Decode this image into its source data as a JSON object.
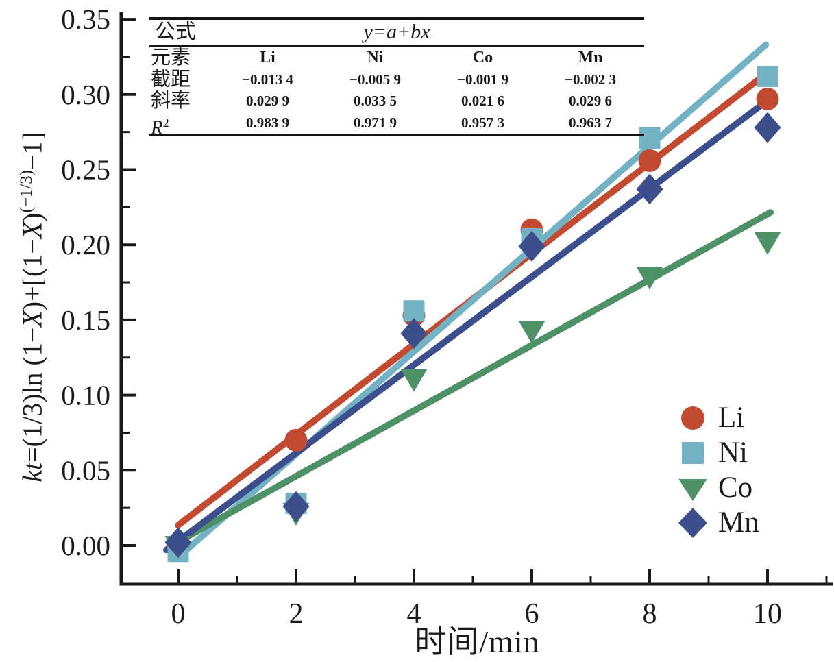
{
  "figure": {
    "background": "#ffffff",
    "text_color": "#1a1a1a",
    "axis_color": "#1a1a1a"
  },
  "chart_data": {
    "type": "scatter",
    "title": "",
    "xlabel": "时间/min",
    "ylabel": "kt=(1/3)ln (1−X)+[(1−X)^(−1/3)−1]",
    "ylabel_segments": [
      {
        "t": "kt",
        "i": true
      },
      {
        "t": "=(1/3)ln (1−",
        "i": false
      },
      {
        "t": "X",
        "i": true
      },
      {
        "t": ")+[(1−",
        "i": false
      },
      {
        "t": "X",
        "i": true
      },
      {
        "t": ")",
        "i": false
      },
      {
        "t": "(−1/3)",
        "sup": true
      },
      {
        "t": "−1]",
        "i": false
      }
    ],
    "xlim": [
      -1,
      11.2
    ],
    "ylim": [
      -0.026,
      0.353
    ],
    "grid": false,
    "legend_position": "lower-right",
    "x_ticks": [
      0,
      2,
      4,
      6,
      8,
      10
    ],
    "x_tick_labels": [
      "0",
      "2",
      "4",
      "6",
      "8",
      "10"
    ],
    "x_minor_ticks": [
      1,
      3,
      5,
      7,
      9,
      11
    ],
    "y_ticks": [
      0.0,
      0.05,
      0.1,
      0.15,
      0.2,
      0.25,
      0.3,
      0.35
    ],
    "y_tick_labels": [
      "0.00",
      "0.05",
      "0.10",
      "0.15",
      "0.20",
      "0.25",
      "0.30",
      "0.35"
    ],
    "y_minor_ticks": [
      0.025,
      0.075,
      0.125,
      0.175,
      0.225,
      0.275,
      0.325
    ],
    "x": [
      0,
      2,
      4,
      6,
      8,
      10
    ],
    "series": [
      {
        "name": "Li",
        "marker": "circle",
        "color": "#c14a31",
        "values": [
          0.0,
          0.07,
          0.153,
          0.21,
          0.256,
          0.297
        ],
        "fit": {
          "intercept": -0.0134,
          "slope": 0.0299,
          "r2": 0.9839
        },
        "fit_draw": {
          "x1": 0.0,
          "y1": 0.0135,
          "x2": 10.0,
          "y2": 0.3145
        }
      },
      {
        "name": "Ni",
        "marker": "square",
        "color": "#72b2c4",
        "values": [
          -0.004,
          0.028,
          0.156,
          0.204,
          0.271,
          0.312
        ],
        "fit": {
          "intercept": -0.0059,
          "slope": 0.0335,
          "r2": 0.9719
        },
        "fit_draw": {
          "x1": 0.05,
          "y1": -0.006,
          "x2": 9.97,
          "y2": 0.333
        }
      },
      {
        "name": "Co",
        "marker": "triangle-down",
        "color": "#4f9166",
        "values": [
          0.0,
          0.022,
          0.111,
          0.143,
          0.179,
          0.202
        ],
        "fit": {
          "intercept": -0.0019,
          "slope": 0.0216,
          "r2": 0.9573
        },
        "fit_draw": {
          "x1": 0.0,
          "y1": 0.0025,
          "x2": 10.05,
          "y2": 0.2215
        }
      },
      {
        "name": "Mn",
        "marker": "diamond",
        "color": "#3c4f8c",
        "values": [
          0.002,
          0.026,
          0.141,
          0.199,
          0.237,
          0.278
        ],
        "fit": {
          "intercept": -0.0023,
          "slope": 0.0296,
          "r2": 0.9637
        },
        "fit_draw": {
          "x1": -0.2,
          "y1": -0.003,
          "x2": 9.95,
          "y2": 0.2945
        }
      }
    ]
  },
  "fit_table": {
    "formula_label": "公式",
    "formula": "y=a+bx",
    "element_label": "元素",
    "intercept_label": "截距",
    "slope_label": "斜率",
    "r2_label_segments": [
      {
        "t": "R",
        "i": true
      },
      {
        "t": "2",
        "sup": true
      }
    ],
    "columns": [
      "Li",
      "Ni",
      "Co",
      "Mn"
    ],
    "intercept": [
      "−0.013 4",
      "−0.005 9",
      "−0.001 9",
      "−0.002 3"
    ],
    "slope": [
      "0.029 9",
      "0.033 5",
      "0.021 6",
      "0.029 6"
    ],
    "r_squared": [
      "0.983 9",
      "0.971 9",
      "0.957 3",
      "0.963 7"
    ]
  },
  "legend": {
    "items": [
      "Li",
      "Ni",
      "Co",
      "Mn"
    ]
  }
}
